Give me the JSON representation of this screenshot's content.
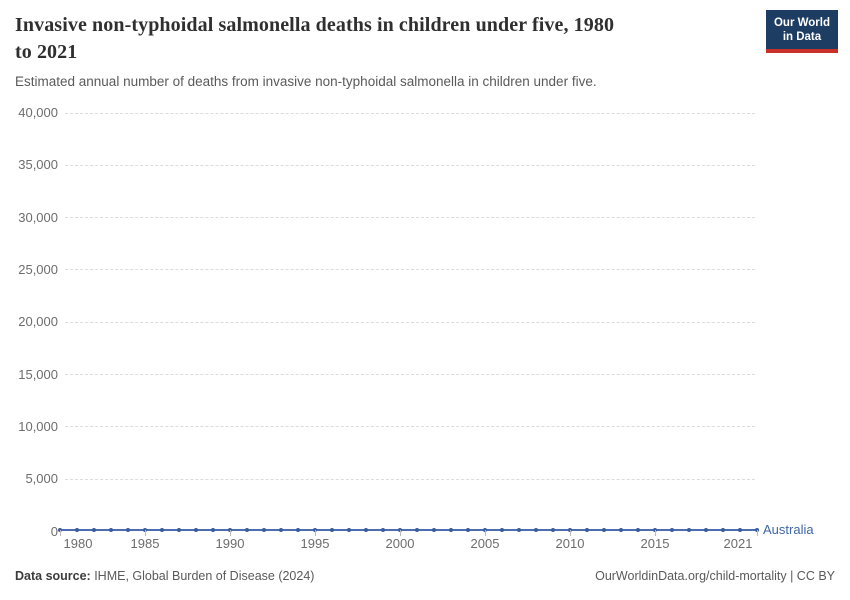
{
  "header": {
    "title_line1": "Invasive non-typhoidal salmonella deaths in children under five, 1980",
    "title_line2": "to 2021",
    "logo": {
      "line1": "Our World",
      "line2": "in Data",
      "bg_color": "#1d3d63",
      "stripe_color": "#c8302a",
      "text_color": "#ffffff"
    }
  },
  "chart_data": {
    "type": "line",
    "title": "Invasive non-typhoidal salmonella deaths in children under five, 1980 to 2021",
    "subtitle": "Estimated annual number of deaths from invasive non-typhoidal salmonella in children under five.",
    "xlabel": "",
    "ylabel": "",
    "ylim": [
      0,
      40000
    ],
    "xlim": [
      1980,
      2021
    ],
    "grid": "horizontal-dashed",
    "legend_position": "end-of-line-label",
    "x": [
      1980,
      1981,
      1982,
      1983,
      1984,
      1985,
      1986,
      1987,
      1988,
      1989,
      1990,
      1991,
      1992,
      1993,
      1994,
      1995,
      1996,
      1997,
      1998,
      1999,
      2000,
      2001,
      2002,
      2003,
      2004,
      2005,
      2006,
      2007,
      2008,
      2009,
      2010,
      2011,
      2012,
      2013,
      2014,
      2015,
      2016,
      2017,
      2018,
      2019,
      2020,
      2021
    ],
    "x_ticks": [
      "1980",
      "1985",
      "1990",
      "1995",
      "2000",
      "2005",
      "2010",
      "2015",
      "2021"
    ],
    "y_ticks": [
      "0",
      "5,000",
      "10,000",
      "15,000",
      "20,000",
      "25,000",
      "30,000",
      "35,000",
      "40,000"
    ],
    "series": [
      {
        "name": "Australia",
        "color": "#4a6db6",
        "marker_color": "#3a5c9e",
        "label_color": "#3f66a6",
        "values": [
          0,
          0,
          0,
          0,
          0,
          0,
          0,
          0,
          0,
          0,
          0,
          0,
          0,
          0,
          0,
          0,
          0,
          0,
          0,
          0,
          0,
          0,
          0,
          0,
          0,
          0,
          0,
          0,
          0,
          0,
          0,
          0,
          0,
          0,
          0,
          0,
          0,
          0,
          0,
          0,
          0,
          0
        ]
      }
    ]
  },
  "footer": {
    "source_label": "Data source:",
    "source_text": " IHME, Global Burden of Disease (2024)",
    "link": "OurWorldinData.org/child-mortality",
    "divider": " | ",
    "license": "CC BY"
  }
}
